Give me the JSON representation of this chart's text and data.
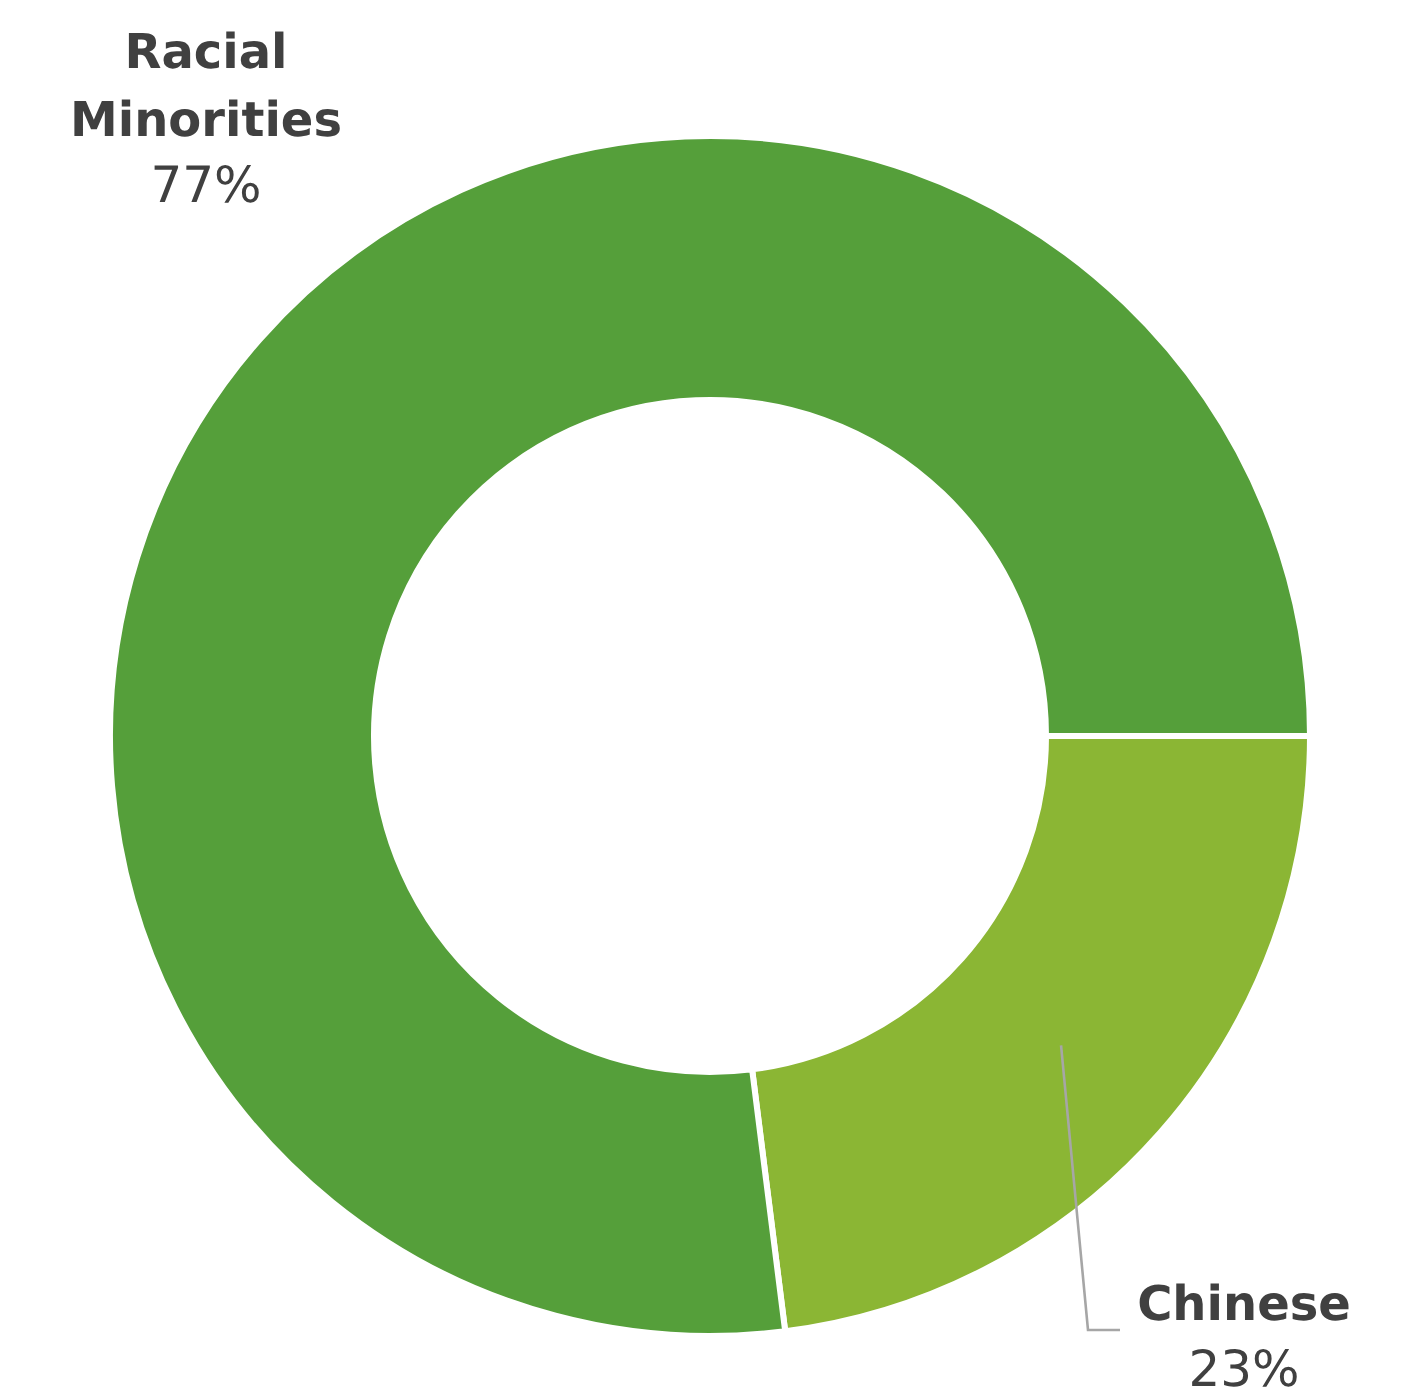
{
  "chart_data": {
    "type": "donut",
    "categories": [
      "Chinese",
      "Racial Minorities"
    ],
    "values": [
      23,
      77
    ],
    "colors": [
      "#8bb634",
      "#559f3a"
    ],
    "value_labels": [
      "23%",
      "77%"
    ]
  }
}
